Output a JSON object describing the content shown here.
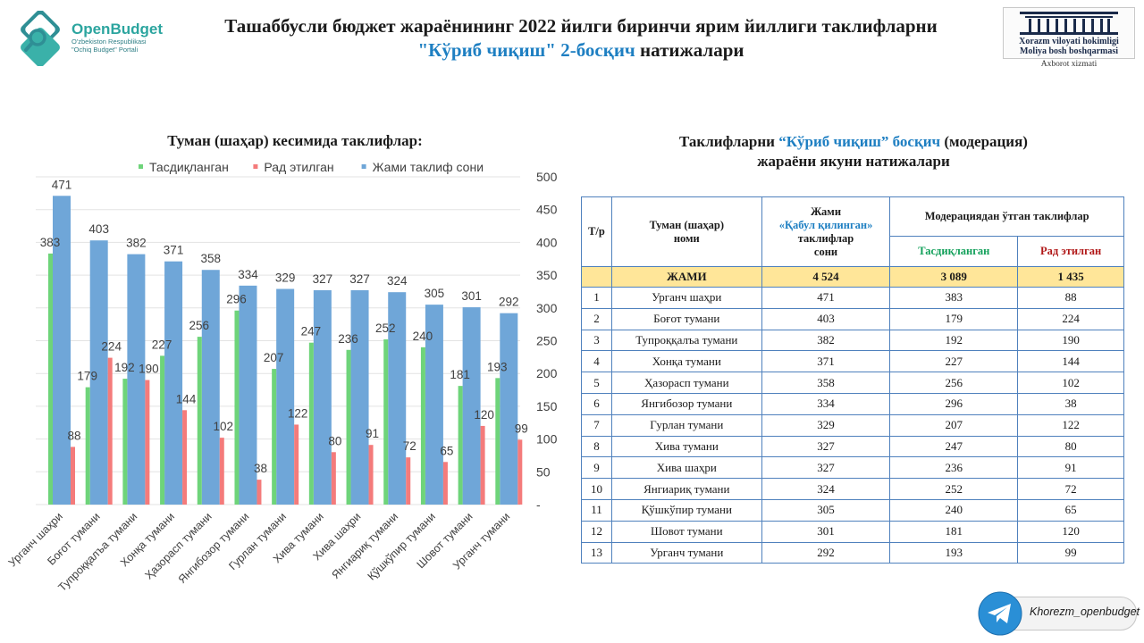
{
  "header": {
    "logo_name": "OpenBudget",
    "logo_sub_1": "O'zbekiston Respublikasi",
    "logo_sub_2": "\"Ochiq Budget\" Portali",
    "title_line1": "Ташаббусли бюджет жараёнининг 2022 йилги биринчи ярим йиллиги таклифларни",
    "title_line2_blue": "\"Кўриб чиқиш\" 2-босқич",
    "title_line2_rest": " натижалари",
    "agency_line1": "Xorazm viloyati hokimligi",
    "agency_line2": "Moliya bosh boshqarmasi",
    "agency_line3": "Axborot xizmati"
  },
  "chart_title": "Туман (шаҳар) кесимида таклифлар:",
  "chart_data": {
    "type": "bar",
    "categories": [
      "Урганч шаҳри",
      "Боғот тумани",
      "Тупроққалъа тумани",
      "Хонқа тумани",
      "Ҳазорасп тумани",
      "Янгибозор тумани",
      "Гурлан тумани",
      "Хива тумани",
      "Хива шаҳри",
      "Янгиариқ тумани",
      "Қўшкўпир тумани",
      "Шовот тумани",
      "Урганч тумани"
    ],
    "series": [
      {
        "name": "Жами таклиф сони",
        "values": [
          471,
          403,
          382,
          371,
          358,
          334,
          329,
          327,
          327,
          324,
          305,
          301,
          292
        ],
        "color": "#6fa6d8"
      },
      {
        "name": "Тасдиқланган",
        "values": [
          383,
          179,
          192,
          227,
          256,
          296,
          207,
          247,
          236,
          252,
          240,
          181,
          193
        ],
        "color": "#6ed47a"
      },
      {
        "name": "Рад этилган",
        "values": [
          88,
          224,
          190,
          144,
          102,
          38,
          122,
          80,
          91,
          72,
          65,
          120,
          99
        ],
        "color": "#f47b7b"
      }
    ],
    "legend_order": [
      "Тасдиқланган",
      "Рад этилган",
      "Жами таклиф сони"
    ],
    "legend_placement": "top",
    "ylim": [
      0,
      500
    ],
    "yticks": [
      "-",
      "50",
      "100",
      "150",
      "200",
      "250",
      "300",
      "350",
      "400",
      "450",
      "500"
    ],
    "y_axis_side": "right",
    "grid": true
  },
  "table": {
    "title_pre": "Таклифларни ",
    "title_blue": "“Кўриб чиқиш” босқич",
    "title_post": " (модерация)",
    "title_line2": "жараёни якуни натижалари",
    "headers": {
      "num": "Т/р",
      "district_1": "Туман (шаҳар)",
      "district_2": "номи",
      "total_1": "Жами",
      "total_2": "«Қабул қилинган»",
      "total_3": "таклифлар",
      "total_4": "сони",
      "moderation": "Модерациядан ўтган таклифлар",
      "approved": "Тасдиқланган",
      "rejected": "Рад этилган"
    },
    "total_row": {
      "label": "ЖАМИ",
      "total": "4 524",
      "approved": "3 089",
      "rejected": "1 435"
    },
    "rows": [
      {
        "n": "1",
        "name": "Урганч шаҳри",
        "total": "471",
        "approved": "383",
        "rejected": "88"
      },
      {
        "n": "2",
        "name": "Боғот тумани",
        "total": "403",
        "approved": "179",
        "rejected": "224"
      },
      {
        "n": "3",
        "name": "Тупроққалъа тумани",
        "total": "382",
        "approved": "192",
        "rejected": "190"
      },
      {
        "n": "4",
        "name": "Хонқа тумани",
        "total": "371",
        "approved": "227",
        "rejected": "144"
      },
      {
        "n": "5",
        "name": "Ҳазорасп тумани",
        "total": "358",
        "approved": "256",
        "rejected": "102"
      },
      {
        "n": "6",
        "name": "Янгибозор тумани",
        "total": "334",
        "approved": "296",
        "rejected": "38"
      },
      {
        "n": "7",
        "name": "Гурлан тумани",
        "total": "329",
        "approved": "207",
        "rejected": "122"
      },
      {
        "n": "8",
        "name": "Хива тумани",
        "total": "327",
        "approved": "247",
        "rejected": "80"
      },
      {
        "n": "9",
        "name": "Хива шаҳри",
        "total": "327",
        "approved": "236",
        "rejected": "91"
      },
      {
        "n": "10",
        "name": "Янгиариқ тумани",
        "total": "324",
        "approved": "252",
        "rejected": "72"
      },
      {
        "n": "11",
        "name": "Қўшкўпир тумани",
        "total": "305",
        "approved": "240",
        "rejected": "65"
      },
      {
        "n": "12",
        "name": "Шовот тумани",
        "total": "301",
        "approved": "181",
        "rejected": "120"
      },
      {
        "n": "13",
        "name": "Урганч тумани",
        "total": "292",
        "approved": "193",
        "rejected": "99"
      }
    ]
  },
  "telegram": {
    "handle": "Khorezm_openbudget",
    "icon": "telegram-icon"
  }
}
